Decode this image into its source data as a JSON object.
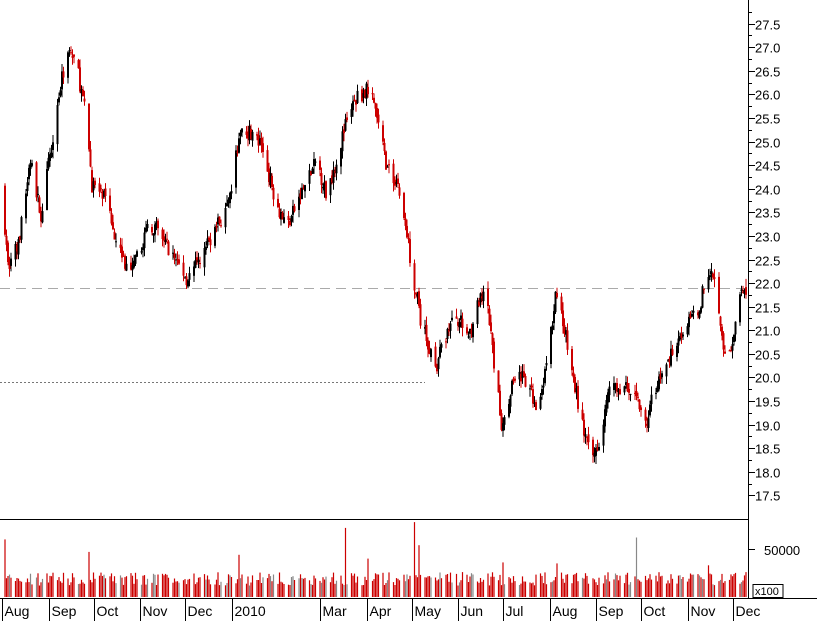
{
  "chart_data": {
    "type": "candlestick",
    "title": "",
    "colors": {
      "up": "#000000",
      "down": "#cc0000",
      "volume": "#cc0000",
      "axis": "#000000",
      "reference": "#999999"
    },
    "price_axis": {
      "ylim": [
        17.0,
        28.0
      ],
      "ticks": [
        "17.5",
        "18.0",
        "18.5",
        "19.0",
        "19.5",
        "20.0",
        "20.5",
        "21.0",
        "21.5",
        "22.0",
        "22.5",
        "23.0",
        "23.5",
        "24.0",
        "24.5",
        "25.0",
        "25.5",
        "26.0",
        "26.5",
        "27.0",
        "27.5"
      ]
    },
    "volume_axis": {
      "tick_label": "50000",
      "tick_value": 50000,
      "multiplier_label": "x100",
      "ylim": [
        0,
        100000
      ]
    },
    "reference_lines": [
      {
        "value": 21.9,
        "style": "dashed"
      },
      {
        "value": 19.9,
        "style": "dotted",
        "end_date": "2010-05-10"
      }
    ],
    "x_axis": {
      "start_date": "2009-08-01",
      "end_date": "2010-12-10",
      "labels": [
        {
          "label": "Aug",
          "date": "2009-08-01"
        },
        {
          "label": "Sep",
          "date": "2009-09-01"
        },
        {
          "label": "Oct",
          "date": "2009-10-01"
        },
        {
          "label": "Nov",
          "date": "2009-11-01"
        },
        {
          "label": "Dec",
          "date": "2009-12-01"
        },
        {
          "label": "2010",
          "date": "2010-01-01"
        },
        {
          "label": "Mar",
          "date": "2010-03-01"
        },
        {
          "label": "Apr",
          "date": "2010-04-01"
        },
        {
          "label": "May",
          "date": "2010-05-01"
        },
        {
          "label": "Jun",
          "date": "2010-06-01"
        },
        {
          "label": "Jul",
          "date": "2010-07-01"
        },
        {
          "label": "Aug",
          "date": "2010-08-01"
        },
        {
          "label": "Sep",
          "date": "2010-09-01"
        },
        {
          "label": "Oct",
          "date": "2010-10-01"
        },
        {
          "label": "Nov",
          "date": "2010-11-01"
        },
        {
          "label": "Dec",
          "date": "2010-12-01"
        }
      ]
    },
    "close_path": [
      [
        "2009-08-01",
        24.0
      ],
      [
        "2009-08-05",
        22.4
      ],
      [
        "2009-08-12",
        22.8
      ],
      [
        "2009-08-20",
        24.6
      ],
      [
        "2009-08-27",
        23.4
      ],
      [
        "2009-09-07",
        25.8
      ],
      [
        "2009-09-14",
        27.0
      ],
      [
        "2009-09-20",
        26.6
      ],
      [
        "2009-09-26",
        25.5
      ],
      [
        "2009-09-30",
        24.1
      ],
      [
        "2009-10-08",
        23.8
      ],
      [
        "2009-10-16",
        23.0
      ],
      [
        "2009-10-25",
        22.1
      ],
      [
        "2009-10-31",
        22.6
      ],
      [
        "2009-11-07",
        23.3
      ],
      [
        "2009-11-15",
        23.0
      ],
      [
        "2009-11-25",
        22.5
      ],
      [
        "2009-12-02",
        22.1
      ],
      [
        "2009-12-10",
        22.4
      ],
      [
        "2009-12-20",
        23.1
      ],
      [
        "2009-12-30",
        23.6
      ],
      [
        "2010-01-07",
        25.3
      ],
      [
        "2010-01-14",
        25.2
      ],
      [
        "2010-01-22",
        24.8
      ],
      [
        "2010-01-31",
        23.7
      ],
      [
        "2010-02-07",
        23.2
      ],
      [
        "2010-02-18",
        24.0
      ],
      [
        "2010-02-27",
        24.6
      ],
      [
        "2010-03-05",
        23.9
      ],
      [
        "2010-03-12",
        24.6
      ],
      [
        "2010-03-20",
        25.6
      ],
      [
        "2010-03-27",
        26.0
      ],
      [
        "2010-04-03",
        26.1
      ],
      [
        "2010-04-08",
        25.5
      ],
      [
        "2010-04-15",
        24.4
      ],
      [
        "2010-04-22",
        24.1
      ],
      [
        "2010-04-28",
        23.0
      ],
      [
        "2010-05-02",
        22.2
      ],
      [
        "2010-05-07",
        21.2
      ],
      [
        "2010-05-13",
        20.6
      ],
      [
        "2010-05-18",
        20.3
      ],
      [
        "2010-05-25",
        21.0
      ],
      [
        "2010-05-31",
        21.3
      ],
      [
        "2010-06-08",
        20.9
      ],
      [
        "2010-06-15",
        21.6
      ],
      [
        "2010-06-20",
        21.7
      ],
      [
        "2010-06-25",
        20.3
      ],
      [
        "2010-06-30",
        19.0
      ],
      [
        "2010-07-05",
        19.6
      ],
      [
        "2010-07-10",
        20.2
      ],
      [
        "2010-07-17",
        19.8
      ],
      [
        "2010-07-24",
        19.4
      ],
      [
        "2010-07-31",
        20.4
      ],
      [
        "2010-08-05",
        21.7
      ],
      [
        "2010-08-10",
        21.2
      ],
      [
        "2010-08-16",
        20.1
      ],
      [
        "2010-08-23",
        19.0
      ],
      [
        "2010-08-29",
        18.2
      ],
      [
        "2010-09-04",
        18.8
      ],
      [
        "2010-09-10",
        19.7
      ],
      [
        "2010-09-18",
        19.8
      ],
      [
        "2010-09-25",
        19.7
      ],
      [
        "2010-09-30",
        19.5
      ],
      [
        "2010-10-05",
        19.0
      ],
      [
        "2010-10-10",
        19.8
      ],
      [
        "2010-10-17",
        20.1
      ],
      [
        "2010-10-24",
        20.8
      ],
      [
        "2010-10-31",
        21.1
      ],
      [
        "2010-11-07",
        21.3
      ],
      [
        "2010-11-13",
        22.0
      ],
      [
        "2010-11-17",
        22.4
      ],
      [
        "2010-11-22",
        21.5
      ],
      [
        "2010-11-27",
        20.2
      ],
      [
        "2010-12-02",
        20.8
      ],
      [
        "2010-12-06",
        21.7
      ],
      [
        "2010-12-10",
        21.8
      ]
    ],
    "volume_spikes": [
      [
        "2009-08-03",
        60000
      ],
      [
        "2009-09-28",
        47000
      ],
      [
        "2010-01-06",
        44000
      ],
      [
        "2010-03-18",
        72000
      ],
      [
        "2010-04-02",
        40000
      ],
      [
        "2010-05-03",
        78000
      ],
      [
        "2010-05-06",
        54000
      ],
      [
        "2010-07-01",
        36000
      ],
      [
        "2010-08-06",
        35000
      ],
      [
        "2010-09-28",
        62000
      ],
      [
        "2010-11-15",
        33000
      ]
    ]
  }
}
